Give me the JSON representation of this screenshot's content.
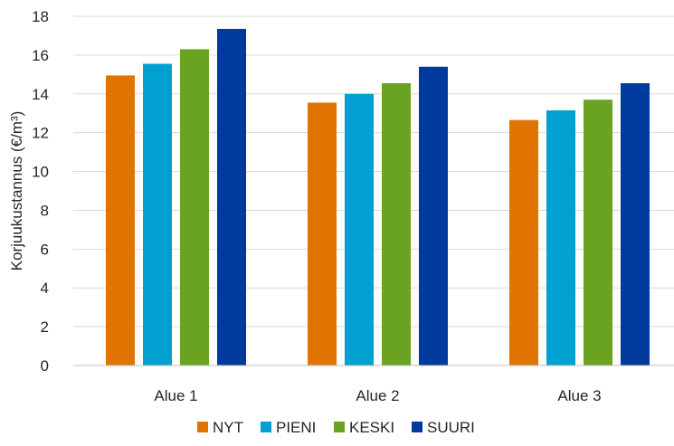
{
  "chart_data": {
    "type": "bar",
    "categories": [
      "Alue 1",
      "Alue 2",
      "Alue 3"
    ],
    "series": [
      {
        "name": "NYT",
        "color": "#E07400",
        "values": [
          14.95,
          13.55,
          12.65
        ]
      },
      {
        "name": "PIENI",
        "color": "#00A0D0",
        "values": [
          15.55,
          14.0,
          13.15
        ]
      },
      {
        "name": "KESKI",
        "color": "#6AA222",
        "values": [
          16.3,
          14.55,
          13.7
        ]
      },
      {
        "name": "SUURI",
        "color": "#003A9E",
        "values": [
          17.35,
          15.4,
          14.55
        ]
      }
    ],
    "ylabel": "Korjuukustannus (€/m³)",
    "ylim": [
      0,
      18
    ],
    "yticks": [
      0,
      2,
      4,
      6,
      8,
      10,
      12,
      14,
      16,
      18
    ],
    "grid": true,
    "legend_position": "bottom"
  }
}
